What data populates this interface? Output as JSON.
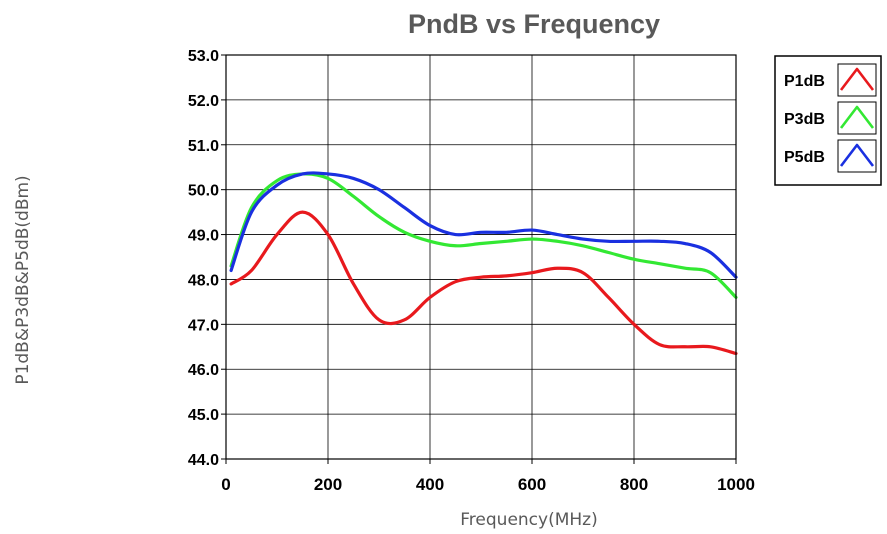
{
  "chart_data": {
    "type": "line",
    "title": "PndB vs Frequency",
    "xlabel": "Frequency(MHz)",
    "ylabel": "P1dB&P3dB&P5dB(dBm)",
    "xlim": [
      0,
      1000
    ],
    "ylim": [
      44.0,
      53.0
    ],
    "x_ticks": [
      "0",
      "200",
      "400",
      "600",
      "800",
      "1000"
    ],
    "x_tick_values": [
      0,
      200,
      400,
      600,
      800,
      1000
    ],
    "y_ticks": [
      "44.0",
      "45.0",
      "46.0",
      "47.0",
      "48.0",
      "49.0",
      "50.0",
      "51.0",
      "52.0",
      "53.0"
    ],
    "y_tick_values": [
      44,
      45,
      46,
      47,
      48,
      49,
      50,
      51,
      52,
      53
    ],
    "grid": true,
    "legend_position": "top-right",
    "x": [
      10,
      50,
      100,
      150,
      200,
      250,
      300,
      350,
      400,
      450,
      500,
      550,
      600,
      650,
      700,
      750,
      800,
      850,
      900,
      950,
      1000
    ],
    "series": [
      {
        "name": "P1dB",
        "color": "#e8191d",
        "values": [
          47.9,
          48.2,
          49.0,
          49.5,
          49.0,
          47.9,
          47.1,
          47.1,
          47.6,
          47.95,
          48.05,
          48.08,
          48.15,
          48.25,
          48.15,
          47.6,
          47.0,
          46.55,
          46.5,
          46.5,
          46.35
        ]
      },
      {
        "name": "P3dB",
        "color": "#33e833",
        "values": [
          48.3,
          49.6,
          50.2,
          50.35,
          50.25,
          49.85,
          49.4,
          49.05,
          48.85,
          48.75,
          48.8,
          48.85,
          48.9,
          48.85,
          48.75,
          48.6,
          48.45,
          48.35,
          48.25,
          48.15,
          47.6
        ]
      },
      {
        "name": "P5dB",
        "color": "#1a30e0",
        "values": [
          48.2,
          49.5,
          50.1,
          50.35,
          50.35,
          50.25,
          50.0,
          49.6,
          49.2,
          49.0,
          49.05,
          49.05,
          49.1,
          49.0,
          48.9,
          48.85,
          48.85,
          48.85,
          48.8,
          48.6,
          48.05
        ]
      }
    ]
  }
}
